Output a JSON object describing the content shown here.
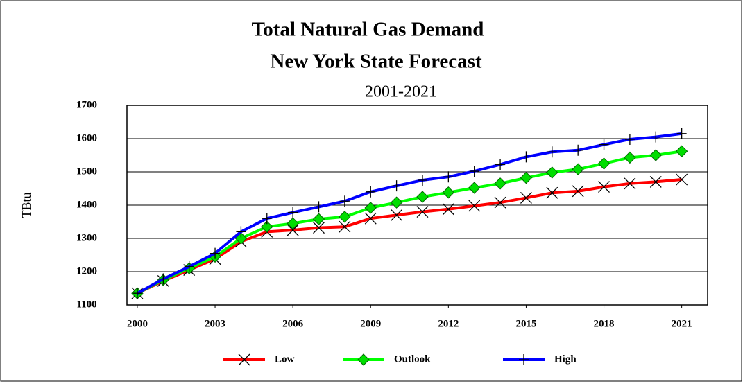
{
  "chart_data": {
    "type": "line",
    "title": "Total Natural Gas Demand",
    "subtitle": "New York State Forecast",
    "annotation": "2001-2021",
    "y_label": "TBtu",
    "x": [
      2000,
      2001,
      2002,
      2003,
      2004,
      2005,
      2006,
      2007,
      2008,
      2009,
      2010,
      2011,
      2012,
      2013,
      2014,
      2015,
      2016,
      2017,
      2018,
      2019,
      2020,
      2021
    ],
    "xlim": [
      1999.6,
      2022
    ],
    "xticks": [
      2000,
      2003,
      2006,
      2009,
      2012,
      2015,
      2018,
      2021
    ],
    "ylim": [
      1100,
      1700
    ],
    "yticks": [
      1100,
      1200,
      1300,
      1400,
      1500,
      1600,
      1700
    ],
    "grid": true,
    "legend": "bottom",
    "series": [
      {
        "name": "Low",
        "color": "#ff0000",
        "marker": "x",
        "values": [
          1135,
          1172,
          1205,
          1238,
          1290,
          1320,
          1325,
          1332,
          1335,
          1360,
          1370,
          1380,
          1388,
          1398,
          1408,
          1422,
          1437,
          1442,
          1455,
          1465,
          1470,
          1477
        ]
      },
      {
        "name": "Outlook",
        "color": "#00ff00",
        "marker": "diamond",
        "values": [
          1135,
          1175,
          1210,
          1245,
          1300,
          1335,
          1345,
          1358,
          1365,
          1392,
          1408,
          1425,
          1438,
          1452,
          1465,
          1482,
          1498,
          1508,
          1525,
          1543,
          1550,
          1562
        ]
      },
      {
        "name": "High",
        "color": "#0000ff",
        "marker": "plus",
        "values": [
          1135,
          1178,
          1215,
          1255,
          1320,
          1360,
          1378,
          1395,
          1412,
          1440,
          1458,
          1475,
          1485,
          1502,
          1522,
          1545,
          1560,
          1565,
          1582,
          1598,
          1605,
          1615
        ]
      }
    ]
  }
}
